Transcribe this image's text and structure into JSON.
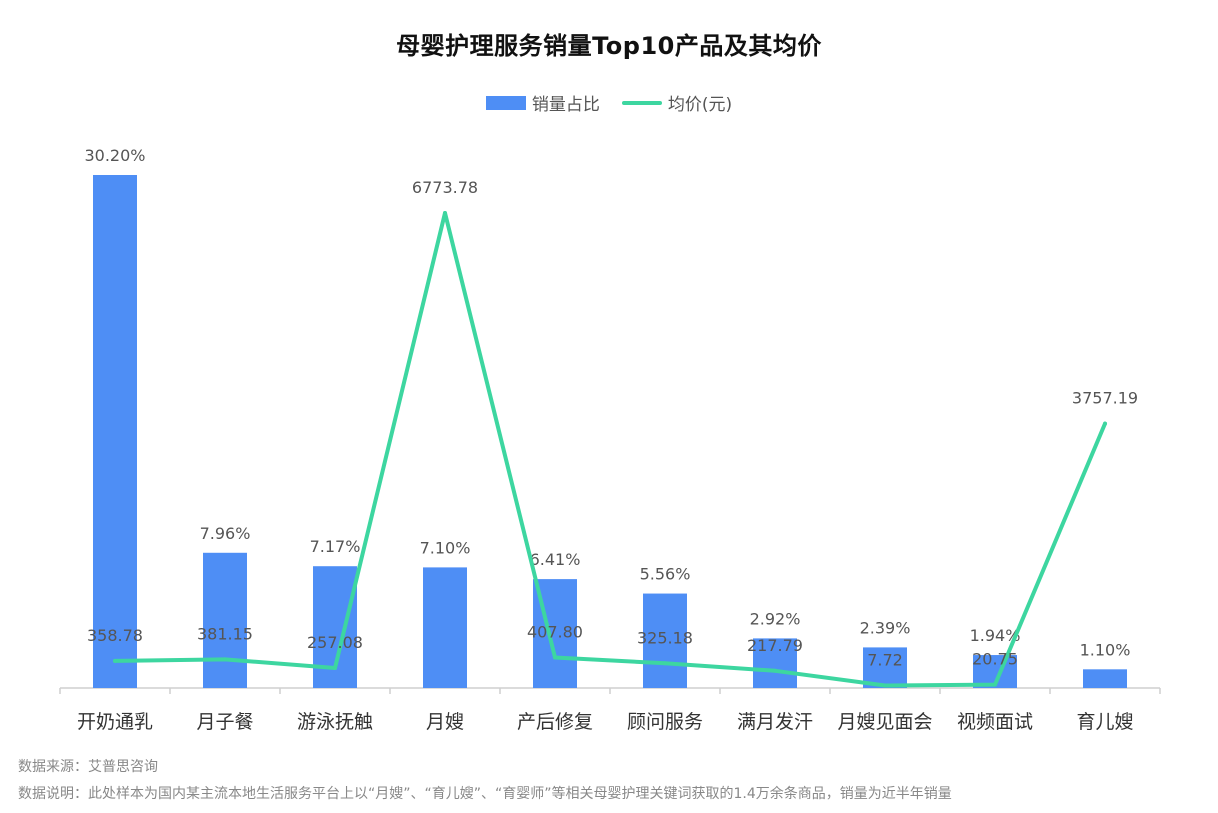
{
  "title": "母婴护理服务销量Top10产品及其均价",
  "legend": {
    "bar_label": "销量占比",
    "line_label": "均价(元)"
  },
  "chart_data": {
    "type": "bar",
    "categories": [
      "开奶通乳",
      "月子餐",
      "游泳抚触",
      "月嫂",
      "产后修复",
      "顾问服务",
      "满月发汗",
      "月嫂见面会",
      "视频面试",
      "育儿嫂"
    ],
    "series": [
      {
        "name": "销量占比",
        "type": "bar",
        "values": [
          30.2,
          7.96,
          7.17,
          7.1,
          6.41,
          5.56,
          2.92,
          2.39,
          1.94,
          1.1
        ],
        "labels": [
          "30.20%",
          "7.96%",
          "7.17%",
          "7.10%",
          "6.41%",
          "5.56%",
          "2.92%",
          "2.39%",
          "1.94%",
          "1.10%"
        ],
        "color": "#4e8ef5"
      },
      {
        "name": "均价(元)",
        "type": "line",
        "values": [
          358.78,
          381.15,
          257.08,
          6773.78,
          407.8,
          325.18,
          217.79,
          7.72,
          20.75,
          3757.19
        ],
        "labels": [
          "358.78",
          "381.15",
          "257.08",
          "6773.78",
          "407.80",
          "325.18",
          "217.79",
          "7.72",
          "20.75",
          "3757.19"
        ],
        "color": "#3dd6a0"
      }
    ],
    "axes": {
      "bar_range": [
        0,
        30.2
      ],
      "line_range": [
        0,
        6773.78
      ]
    },
    "grid": false,
    "legend_position": "top-center"
  },
  "footer": {
    "source": "数据来源：艾普思咨询",
    "note": "数据说明：此处样本为国内某主流本地生活服务平台上以“月嫂”、“育儿嫂”、“育婴师”等相关母婴护理关键词获取的1.4万余条商品，销量为近半年销量"
  }
}
